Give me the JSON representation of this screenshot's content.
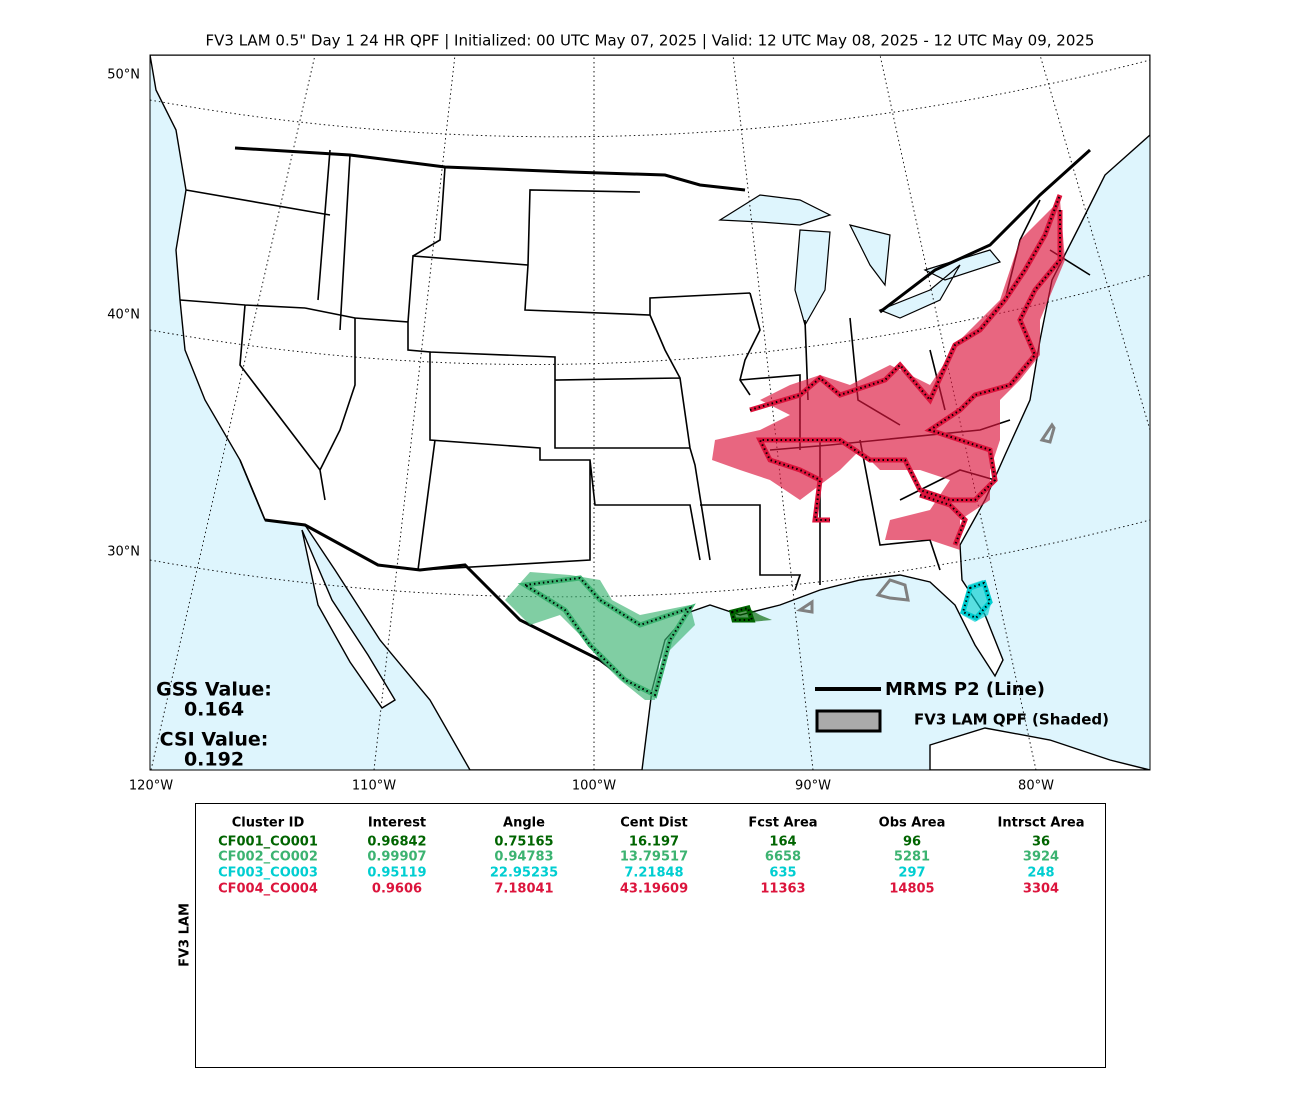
{
  "title": "FV3 LAM 0.5\" Day 1 24 HR QPF | Initialized: 00 UTC May 07, 2025 | Valid: 12 UTC May 08, 2025 - 12 UTC May 09, 2025",
  "map": {
    "lat_labels": [
      "50°N",
      "40°N",
      "30°N"
    ],
    "lon_labels": [
      "120°W",
      "110°W",
      "100°W",
      "90°W",
      "80°W"
    ]
  },
  "legend": [
    "MRMS P2 (Line)",
    "FV3 LAM QPF (Shaded)"
  ],
  "scores": [
    {
      "label": "GSS Value:",
      "value": "0.164"
    },
    {
      "label": "CSI Value:",
      "value": "0.192"
    }
  ],
  "table": {
    "side_label": "FV3 LAM",
    "columns": [
      "Cluster ID",
      "Interest",
      "Angle",
      "Cent Dist",
      "Fcst Area",
      "Obs Area",
      "Intrsct Area"
    ],
    "rows": [
      [
        "CF001_CO001",
        0.96842,
        0.75165,
        16.197,
        164,
        96,
        36
      ],
      [
        "CF002_CO002",
        0.99907,
        0.94783,
        13.79517,
        6658,
        5281,
        3924
      ],
      [
        "CF003_CO003",
        0.95119,
        22.95235,
        7.21848,
        635,
        297,
        248
      ],
      [
        "CF004_CO004",
        0.9606,
        7.18041,
        43.19609,
        11363,
        14805,
        3304
      ]
    ],
    "row_colors": [
      "#006400",
      "#3cb371",
      "#00ced1",
      "#dc143c"
    ]
  }
}
